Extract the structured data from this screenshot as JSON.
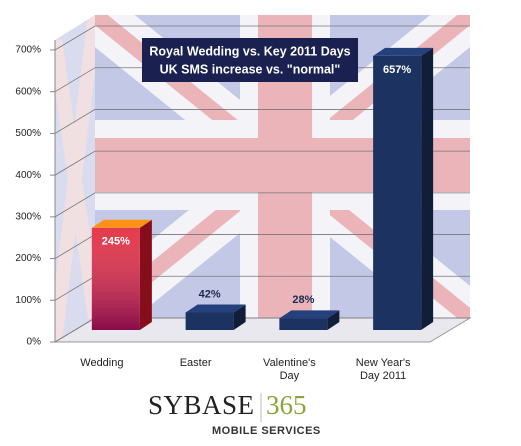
{
  "chart_data": {
    "type": "bar3d",
    "title": "Royal Wedding vs. Key 2011  Days",
    "subtitle": "UK SMS increase vs. \"normal\"",
    "categories": [
      "Wedding",
      "Easter",
      "Valentine's Day",
      "New Year's Day 2011"
    ],
    "values": [
      245,
      42,
      28,
      657
    ],
    "value_labels": [
      "245%",
      "42%",
      "28%",
      "657%"
    ],
    "colors": [
      "#e0182c",
      "#1c3260",
      "#1c3260",
      "#1c3260"
    ],
    "ylim": [
      0,
      700
    ],
    "yticks": [
      {
        "value": 0,
        "label": "0%"
      },
      {
        "value": 100,
        "label": "100%"
      },
      {
        "value": 200,
        "label": "200%"
      },
      {
        "value": 300,
        "label": "300%"
      },
      {
        "value": 400,
        "label": "400%"
      },
      {
        "value": 500,
        "label": "500%"
      },
      {
        "value": 600,
        "label": "600%"
      },
      {
        "value": 700,
        "label": "700%"
      }
    ],
    "grid": true
  },
  "footer": {
    "brand": "SYBASE",
    "number": "365",
    "tagline": "MOBILE SERVICES"
  }
}
